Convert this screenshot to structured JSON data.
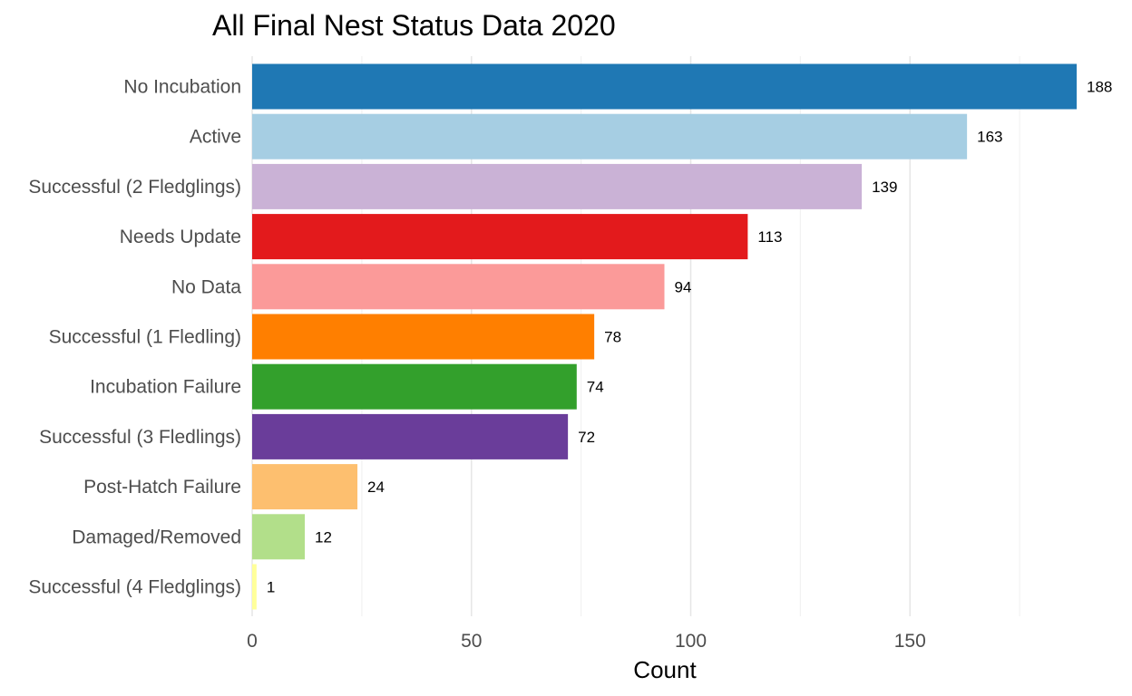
{
  "chart_data": {
    "type": "bar",
    "orientation": "horizontal",
    "title": "All Final Nest Status Data 2020",
    "xlabel": "Count",
    "ylabel": "",
    "categories": [
      "No Incubation",
      "Active",
      "Successful (2 Fledglings)",
      "Needs Update",
      "No Data",
      "Successful (1 Fledling)",
      "Incubation Failure",
      "Successful (3 Fledlings)",
      "Post-Hatch Failure",
      "Damaged/Removed",
      "Successful (4 Fledglings)"
    ],
    "values": [
      188,
      163,
      139,
      113,
      94,
      78,
      74,
      72,
      24,
      12,
      1
    ],
    "colors": [
      "#1f78b4",
      "#a6cee3",
      "#cab2d6",
      "#e31a1c",
      "#fb9a99",
      "#ff7f00",
      "#33a02c",
      "#6a3d9a",
      "#fdbf6f",
      "#b2df8a",
      "#ffff99"
    ],
    "xticks": [
      0,
      50,
      100,
      150
    ],
    "xlim": [
      0,
      188
    ],
    "grid": true,
    "data_labels": true,
    "legend": "none"
  }
}
